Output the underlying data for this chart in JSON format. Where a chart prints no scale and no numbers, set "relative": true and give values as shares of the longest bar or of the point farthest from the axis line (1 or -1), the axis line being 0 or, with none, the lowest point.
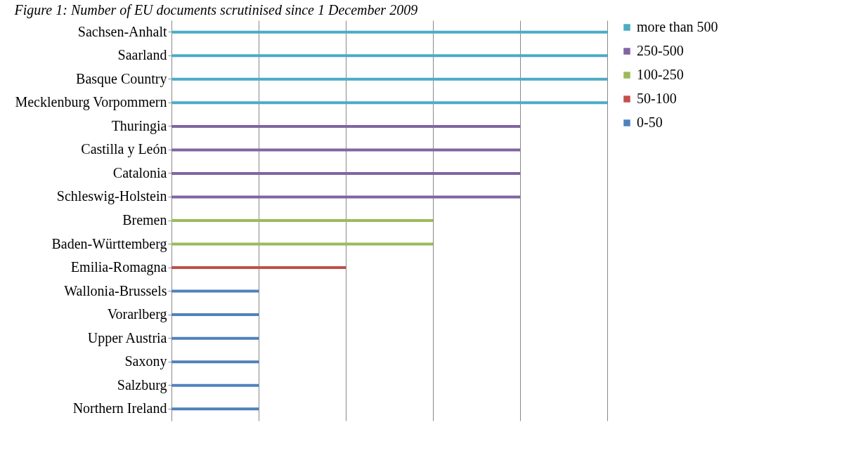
{
  "chart_data": {
    "type": "bar",
    "orientation": "horizontal",
    "relative": true,
    "title": "Figure 1: Number of EU documents scrutinised since 1 December 2009",
    "categories": [
      "Sachsen-Anhalt",
      "Saarland",
      "Basque Country",
      "Mecklenburg Vorpommern",
      "Thuringia",
      "Castilla y León",
      "Catalonia",
      "Schleswig-Holstein",
      "Bremen",
      "Baden-Württemberg",
      "Emilia-Romagna",
      "Wallonia-Brussels",
      "Vorarlberg",
      "Upper Austria",
      "Saxony",
      "Salzburg",
      "Northern Ireland"
    ],
    "series": [
      {
        "name": "more than 500",
        "color": "#4bacc6",
        "values": [
          1,
          1,
          1,
          1,
          null,
          null,
          null,
          null,
          null,
          null,
          null,
          null,
          null,
          null,
          null,
          null,
          null
        ]
      },
      {
        "name": "250-500",
        "color": "#8064a2",
        "values": [
          null,
          null,
          null,
          null,
          0.8,
          0.8,
          0.8,
          0.8,
          null,
          null,
          null,
          null,
          null,
          null,
          null,
          null,
          null
        ]
      },
      {
        "name": "100-250",
        "color": "#9bbb59",
        "values": [
          null,
          null,
          null,
          null,
          null,
          null,
          null,
          null,
          0.6,
          0.6,
          null,
          null,
          null,
          null,
          null,
          null,
          null
        ]
      },
      {
        "name": "50-100",
        "color": "#c0504d",
        "values": [
          null,
          null,
          null,
          null,
          null,
          null,
          null,
          null,
          null,
          null,
          0.4,
          null,
          null,
          null,
          null,
          null,
          null
        ]
      },
      {
        "name": "0-50",
        "color": "#4f81bd",
        "values": [
          null,
          null,
          null,
          null,
          null,
          null,
          null,
          null,
          null,
          null,
          null,
          0.2,
          0.2,
          0.2,
          0.2,
          0.2,
          0.2
        ]
      }
    ],
    "grid": "x",
    "legend": "right"
  }
}
